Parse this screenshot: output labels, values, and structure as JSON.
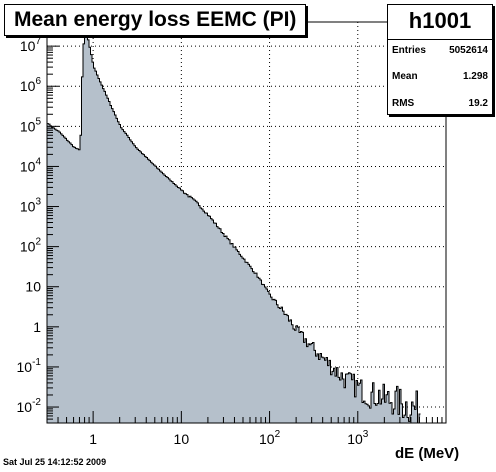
{
  "chart_data": {
    "type": "area",
    "title": "Mean energy loss EEMC (PI)",
    "xlabel": "dE (MeV)",
    "ylabel": "",
    "xscale": "log",
    "yscale": "log",
    "xlim": [
      0.3,
      10000
    ],
    "ylim": [
      0.004,
      40000000
    ],
    "grid": true,
    "fill_color": "#b5c0cb",
    "line_color": "#000000",
    "x_ticks": [
      "1",
      "10",
      "10^2",
      "10^3"
    ],
    "y_ticks": [
      "10^-2",
      "10^-1",
      "1",
      "10",
      "10^2",
      "10^3",
      "10^4",
      "10^5",
      "10^6",
      "10^7"
    ],
    "x": [
      0.3,
      0.35,
      0.4,
      0.5,
      0.6,
      0.7,
      0.72,
      0.75,
      0.8,
      0.85,
      0.9,
      0.95,
      1.0,
      1.2,
      1.5,
      2,
      3,
      5,
      7,
      10,
      15,
      20,
      30,
      50,
      70,
      100,
      150,
      200,
      300,
      500,
      700,
      1000,
      1300,
      1700,
      2000,
      2500,
      3000,
      4000,
      5000
    ],
    "y": [
      120000,
      90000,
      75000,
      45000,
      30000,
      25000,
      150000,
      8000000,
      20000000,
      17000000,
      9000000,
      5000000,
      3000000,
      1200000,
      400000,
      100000,
      30000,
      10000,
      5000,
      2500,
      1200,
      600,
      200,
      50,
      20,
      6,
      2,
      0.8,
      0.3,
      0.1,
      0.05,
      0.03,
      0.02,
      0.02,
      0.015,
      0.015,
      0.012,
      0.01,
      0.008
    ]
  },
  "stats": {
    "name": "h1001",
    "entries_label": "Entries",
    "entries_value": "5052614",
    "mean_label": "Mean",
    "mean_value": "1.298",
    "rms_label": "RMS",
    "rms_value": "19.2"
  },
  "footer": {
    "datestamp": "Sat Jul 25 14:12:52 2009"
  }
}
